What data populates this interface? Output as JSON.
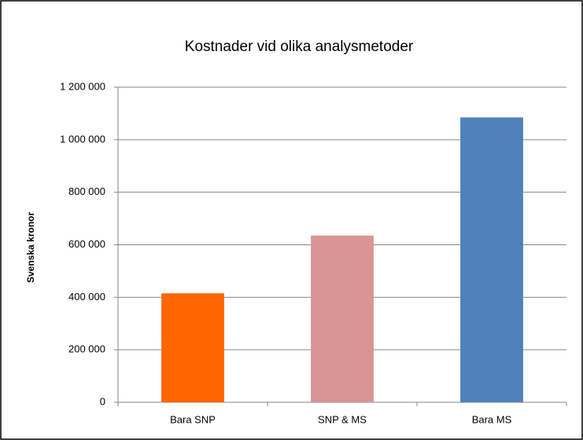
{
  "chart_data": {
    "type": "bar",
    "title": "Kostnader vid olika analysmetoder",
    "y_label": "Svenska kronor",
    "categories": [
      "Bara SNP",
      "SNP & MS",
      "Bara MS"
    ],
    "values": [
      415000,
      635000,
      1085000
    ],
    "colors": [
      "#ff6600",
      "#d99594",
      "#4f81bd"
    ],
    "ylim": [
      0,
      1200000
    ],
    "yticks": [
      0,
      {
        "value": 200000,
        "label": "200 000"
      },
      {
        "value": 400000,
        "label": "400 000"
      },
      {
        "value": 600000,
        "label": "600 000"
      },
      {
        "value": 800000,
        "label": "800 000"
      },
      {
        "value": 1000000,
        "label": "1 000 000"
      },
      {
        "value": 1200000,
        "label": "1 200 000"
      }
    ],
    "grid": true
  }
}
